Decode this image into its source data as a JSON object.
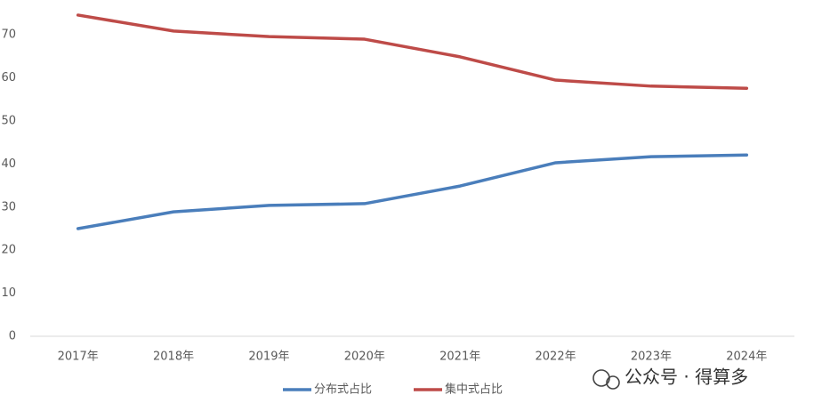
{
  "chart_data": {
    "type": "line",
    "categories": [
      "2017年",
      "2018年",
      "2019年",
      "2020年",
      "2021年",
      "2022年",
      "2023年",
      "2024年"
    ],
    "series": [
      {
        "name": "分布式占比",
        "color": "#4a7ebb",
        "values": [
          25.0,
          28.9,
          30.4,
          30.8,
          34.9,
          40.3,
          41.7,
          42.1
        ]
      },
      {
        "name": "集中式占比",
        "color": "#be4b48",
        "values": [
          74.6,
          70.9,
          69.6,
          69.0,
          64.9,
          59.5,
          58.1,
          57.6
        ]
      }
    ],
    "ylim": [
      0,
      78
    ],
    "yticks": [
      0,
      10,
      20,
      30,
      40,
      50,
      60,
      70
    ],
    "grid": false,
    "legend": "bottom",
    "watermark": "公众号 · 得算多"
  }
}
